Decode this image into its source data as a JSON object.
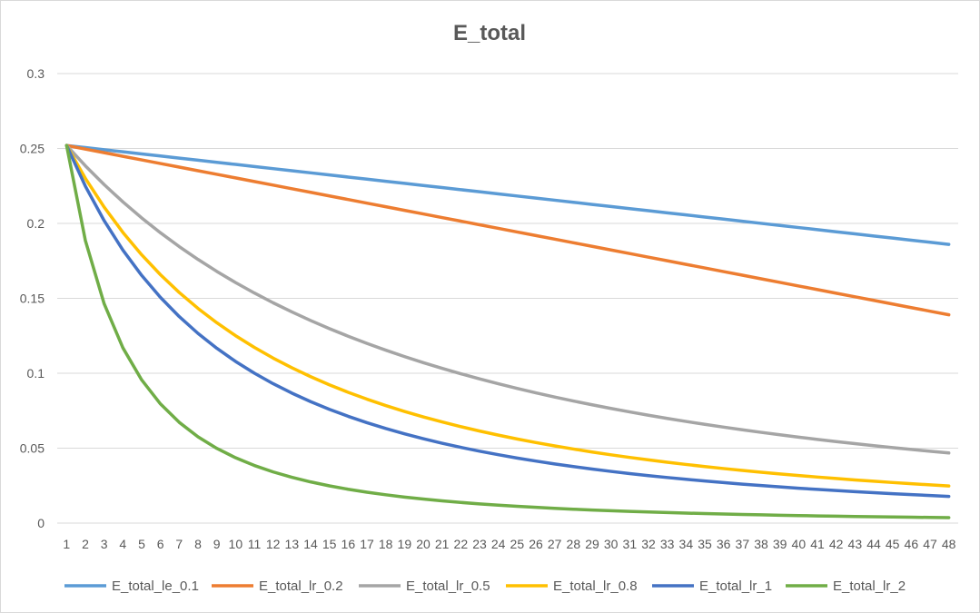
{
  "chart_data": {
    "type": "line",
    "title": "E_total",
    "xlabel": "",
    "ylabel": "",
    "ylim": [
      0,
      0.3
    ],
    "yticks": [
      "0",
      "0.05",
      "0.1",
      "0.15",
      "0.2",
      "0.25",
      "0.3"
    ],
    "ytick_values": [
      0,
      0.05,
      0.1,
      0.15,
      0.2,
      0.25,
      0.3
    ],
    "categories": [
      "1",
      "2",
      "3",
      "4",
      "5",
      "6",
      "7",
      "8",
      "9",
      "10",
      "11",
      "12",
      "13",
      "14",
      "15",
      "16",
      "17",
      "18",
      "19",
      "20",
      "21",
      "22",
      "23",
      "24",
      "25",
      "26",
      "27",
      "28",
      "29",
      "30",
      "31",
      "32",
      "33",
      "34",
      "35",
      "36",
      "37",
      "38",
      "39",
      "40",
      "41",
      "42",
      "43",
      "44",
      "45",
      "46",
      "47",
      "48"
    ],
    "grid": true,
    "legend_position": "bottom",
    "series": [
      {
        "name": "E_total_le_0.1",
        "color": "#5b9bd5",
        "start": 0.252,
        "end": 0.186,
        "shape": "linear"
      },
      {
        "name": "E_total_lr_0.2",
        "color": "#ed7d31",
        "start": 0.252,
        "end": 0.139,
        "shape": "linear"
      },
      {
        "name": "E_total_lr_0.5",
        "color": "#a5a5a5",
        "start": 0.252,
        "end": 0.067,
        "shape": "power",
        "p": 0.0281
      },
      {
        "name": "E_total_lr_0.8",
        "color": "#ffc000",
        "start": 0.252,
        "end": 0.04,
        "shape": "power",
        "p": 0.0466
      },
      {
        "name": "E_total_lr_1",
        "color": "#4472c4",
        "start": 0.252,
        "end": 0.031,
        "shape": "power",
        "p": 0.0587
      },
      {
        "name": "E_total_lr_2",
        "color": "#70ad47",
        "start": 0.252,
        "end": 0.0135,
        "shape": "power",
        "p": 0.156
      }
    ]
  }
}
